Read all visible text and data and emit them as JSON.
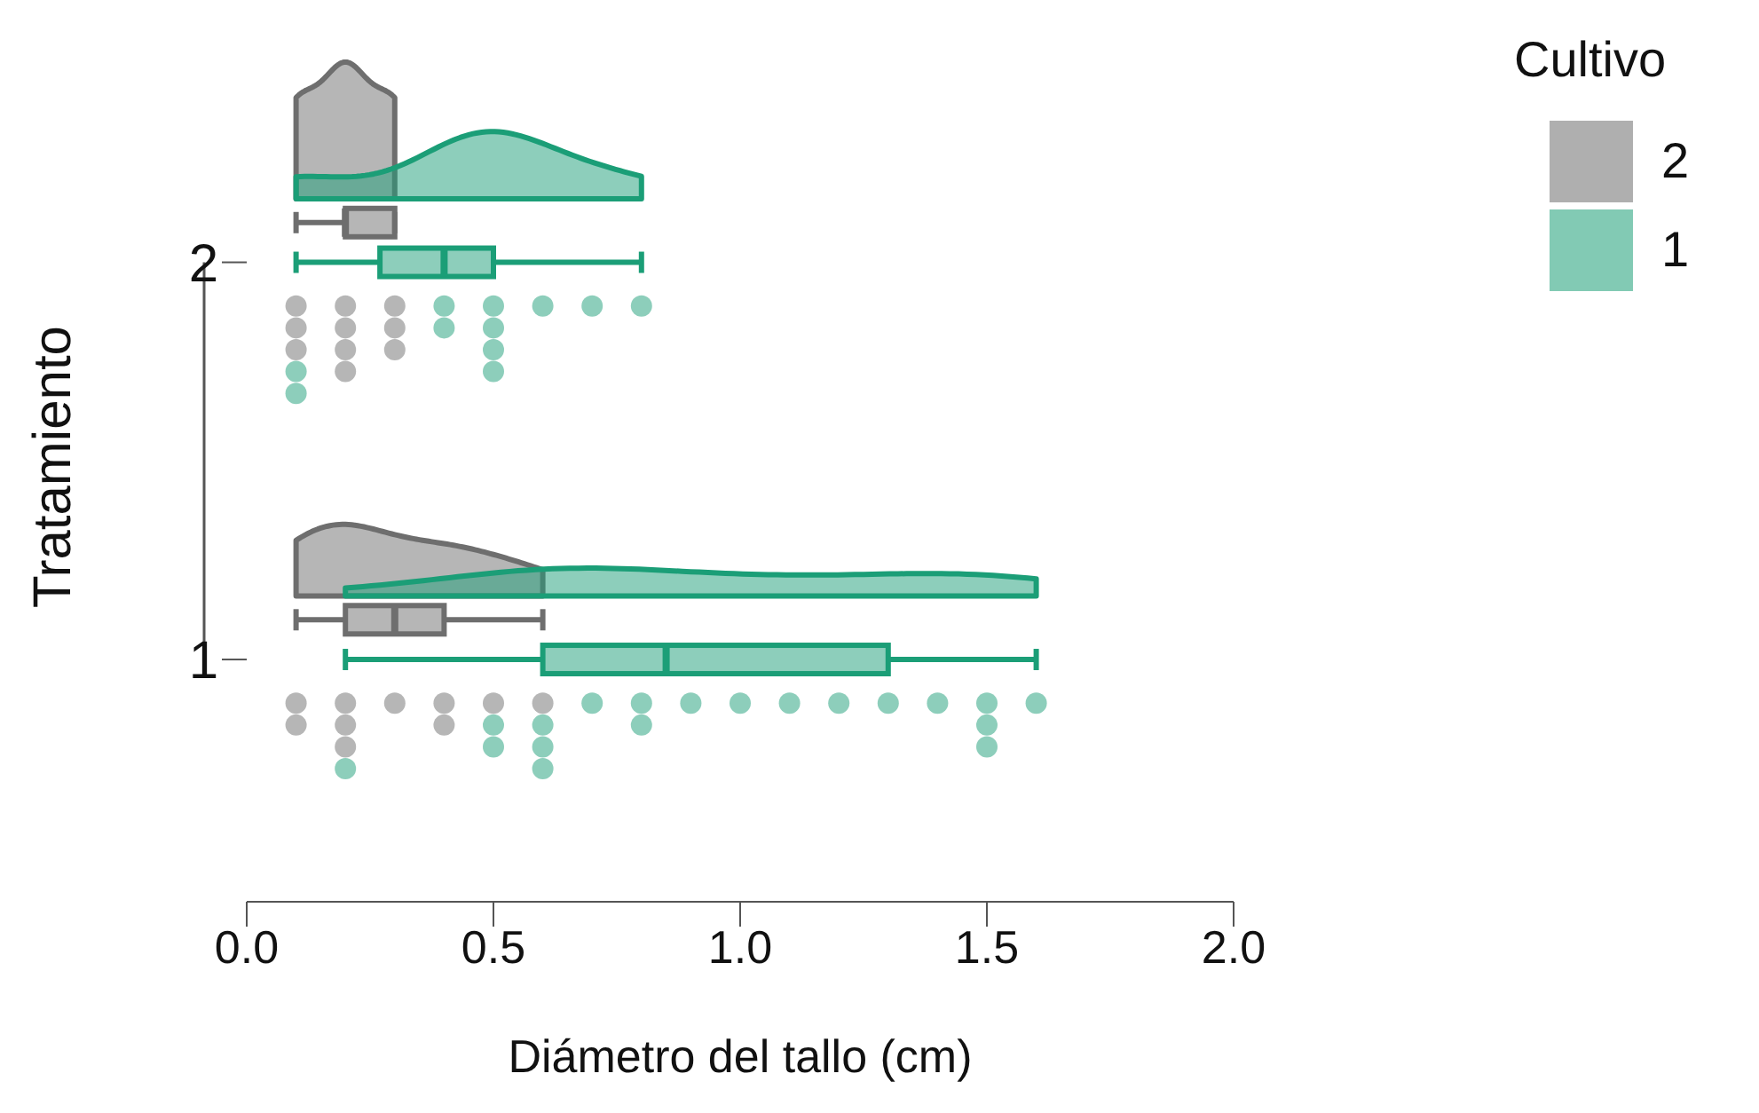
{
  "chart_data": {
    "type": "box",
    "orientation": "horizontal",
    "xlabel": "Diámetro del tallo (cm)",
    "ylabel": "Tratamiento",
    "legend_title": "Cultivo",
    "legend": "top right",
    "categories": [
      "2",
      "1"
    ],
    "xlim": [
      0,
      2
    ],
    "xticks": [
      {
        "value": 0,
        "label": "0.0"
      },
      {
        "value": 0.5,
        "label": "0.5"
      },
      {
        "value": 1,
        "label": "1.0"
      },
      {
        "value": 1.5,
        "label": "1.5"
      },
      {
        "value": 2,
        "label": "2.0"
      }
    ],
    "grid": false,
    "series": [
      {
        "name": "2",
        "color": "#6e6e6e",
        "boxes": [
          {
            "low": 0.1,
            "q1": 0.2,
            "median": 0.2,
            "q3": 0.3,
            "high": 0.3
          },
          {
            "low": 0.1,
            "q1": 0.2,
            "median": 0.3,
            "q3": 0.4,
            "high": 0.6
          }
        ]
      },
      {
        "name": "1",
        "color": "#1b9e77",
        "boxes": [
          {
            "low": 0.1,
            "q1": 0.27,
            "median": 0.4,
            "q3": 0.5,
            "high": 0.8
          },
          {
            "low": 0.2,
            "q1": 0.6,
            "median": 0.85,
            "q3": 1.3,
            "high": 1.6
          }
        ]
      },
      {
        "type": "scatter",
        "color": "#6e6e6e",
        "x": [
          "2",
          "2",
          "2",
          "2",
          "2",
          "2",
          "2",
          "2",
          "2",
          "2",
          "1",
          "1",
          "1",
          "1",
          "1",
          "1",
          "1",
          "1",
          "1",
          "1"
        ],
        "values": [
          0.1,
          0.1,
          0.1,
          0.2,
          0.2,
          0.2,
          0.2,
          0.3,
          0.3,
          0.3,
          0.1,
          0.1,
          0.2,
          0.2,
          0.2,
          0.3,
          0.4,
          0.4,
          0.5,
          0.6
        ]
      },
      {
        "type": "scatter",
        "color": "#1b9e77",
        "x": [
          "2",
          "2",
          "2",
          "2",
          "2",
          "2",
          "2",
          "2",
          "2",
          "2",
          "2",
          "1",
          "1",
          "1",
          "1",
          "1",
          "1",
          "1",
          "1",
          "1",
          "1",
          "1",
          "1",
          "1",
          "1",
          "1",
          "1",
          "1",
          "1",
          "1"
        ],
        "values": [
          0.1,
          0.1,
          0.4,
          0.4,
          0.5,
          0.5,
          0.5,
          0.5,
          0.6,
          0.7,
          0.8,
          0.2,
          0.5,
          0.5,
          0.6,
          0.6,
          0.6,
          0.7,
          0.8,
          0.8,
          0.9,
          1.0,
          1.1,
          1.2,
          1.3,
          1.4,
          1.5,
          1.5,
          1.5,
          1.6
        ]
      }
    ]
  }
}
